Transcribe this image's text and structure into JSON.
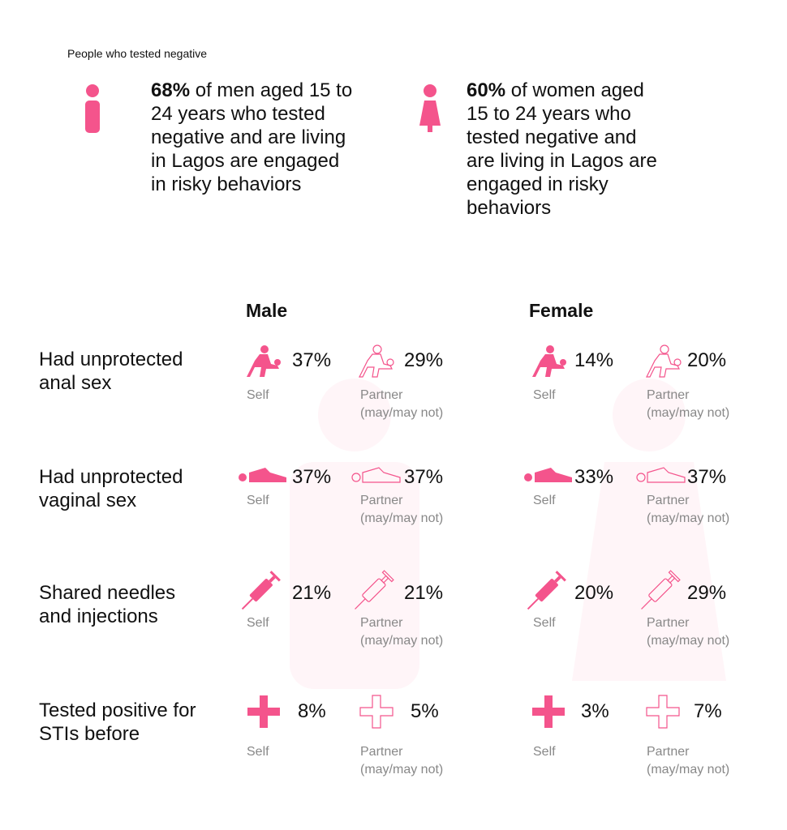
{
  "caption": "People who tested negative",
  "stats": [
    {
      "value": "68%",
      "text": "of men aged 15 to 24 years who tested negative and are living in Lagos are engaged in risky behaviors"
    },
    {
      "value": "60%",
      "text": "of women aged 15 to 24 years who tested negative and are living in Lagos are engaged in risky behaviors"
    }
  ],
  "groups": [
    "Male",
    "Female"
  ],
  "self_label": "Self",
  "partner_label": "Partner",
  "partner_sub": "(may/may not)",
  "rows": [
    {
      "label_lines": [
        "Had unprotected",
        "anal sex"
      ],
      "icon": "anal-sex-icon",
      "male_self": "37%",
      "male_partner": "29%",
      "female_self": "14%",
      "female_partner": "20%"
    },
    {
      "label_lines": [
        "Had unprotected",
        "vaginal sex"
      ],
      "icon": "vaginal-sex-icon",
      "male_self": "37%",
      "male_partner": "37%",
      "female_self": "33%",
      "female_partner": "37%"
    },
    {
      "label_lines": [
        "Shared needles",
        "and injections"
      ],
      "icon": "syringe-icon",
      "male_self": "21%",
      "male_partner": "21%",
      "female_self": "20%",
      "female_partner": "29%"
    },
    {
      "label_lines": [
        "Tested positive for",
        "STIs before"
      ],
      "icon": "plus-icon",
      "male_self": "8%",
      "male_partner": "5%",
      "female_self": "3%",
      "female_partner": "7%"
    }
  ],
  "colors": {
    "accent": "#f4548c",
    "bg_figure": "#fff5f8",
    "muted": "#888888"
  }
}
